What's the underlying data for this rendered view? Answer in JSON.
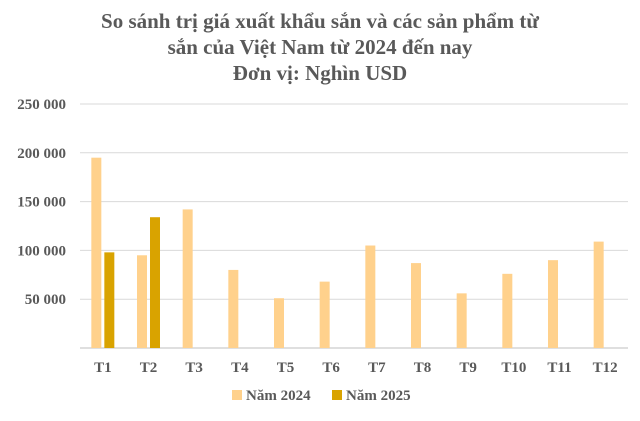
{
  "chart_data": {
    "type": "bar",
    "title_lines": [
      "So sánh trị giá xuất khẩu sắn và các sản phẩm từ",
      "sắn của Việt Nam từ 2024 đến nay",
      "Đơn vị: Nghìn USD"
    ],
    "categories": [
      "T1",
      "T2",
      "T3",
      "T4",
      "T5",
      "T6",
      "T7",
      "T8",
      "T9",
      "T10",
      "T11",
      "T12"
    ],
    "series": [
      {
        "name": "Năm 2024",
        "color": "#FFD18C",
        "values": [
          195000,
          95000,
          142000,
          80000,
          51000,
          68000,
          105000,
          87000,
          56000,
          76000,
          90000,
          109000
        ]
      },
      {
        "name": "Năm 2025",
        "color": "#D9A300",
        "values": [
          98000,
          134000,
          null,
          null,
          null,
          null,
          null,
          null,
          null,
          null,
          null,
          null
        ]
      }
    ],
    "yticks": [
      "250 000",
      "200 000",
      "150 000",
      "100 000",
      "50 000",
      ""
    ],
    "ylim": [
      0,
      250000
    ],
    "grid": true,
    "legend_position": "bottom"
  }
}
